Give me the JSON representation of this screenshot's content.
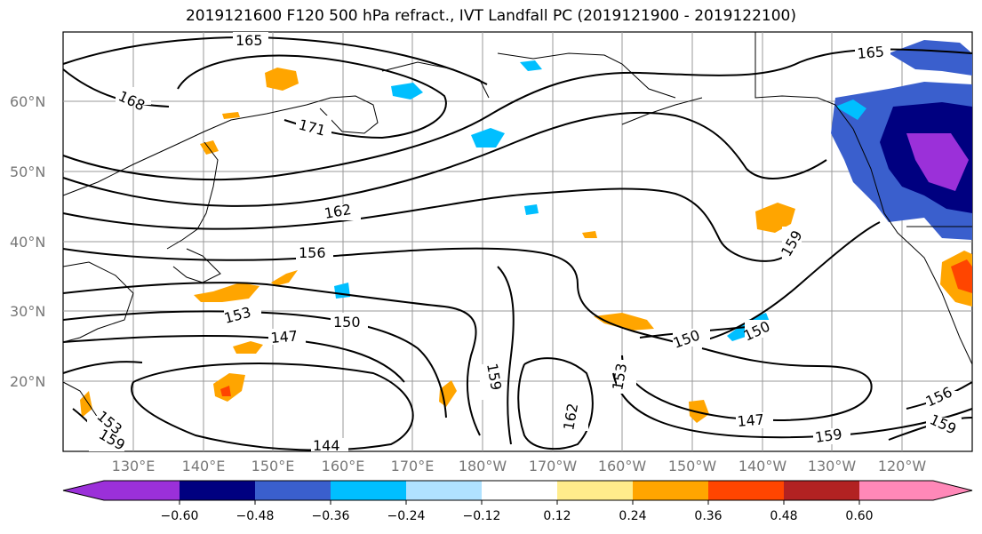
{
  "title": "2019121600 F120 500 hPa refract., IVT Landfall PC (2019121900 - 2019122100)",
  "lat_labels": [
    "60°N",
    "50°N",
    "40°N",
    "30°N",
    "20°N"
  ],
  "lon_labels": [
    "130°E",
    "140°E",
    "150°E",
    "160°E",
    "170°E",
    "180°W",
    "170°W",
    "160°W",
    "150°W",
    "140°W",
    "130°W",
    "120°W"
  ],
  "contour_labels": [
    "165",
    "168",
    "171",
    "162",
    "156",
    "153",
    "150",
    "147",
    "144",
    "159",
    "162",
    "153",
    "150",
    "150",
    "147",
    "159",
    "156",
    "159",
    "165",
    "159",
    "153",
    "159"
  ],
  "colorbar": {
    "tick_labels": [
      "−0.60",
      "−0.48",
      "−0.36",
      "−0.24",
      "−0.12",
      "0.12",
      "0.24",
      "0.36",
      "0.48",
      "0.60"
    ],
    "colors": [
      "#9b30d9",
      "#000080",
      "#3a5fcd",
      "#00bfff",
      "#b0e2ff",
      "#ffffff",
      "#ffec8b",
      "#ffa500",
      "#ff4500",
      "#b22222",
      "#ff88b8"
    ]
  }
}
